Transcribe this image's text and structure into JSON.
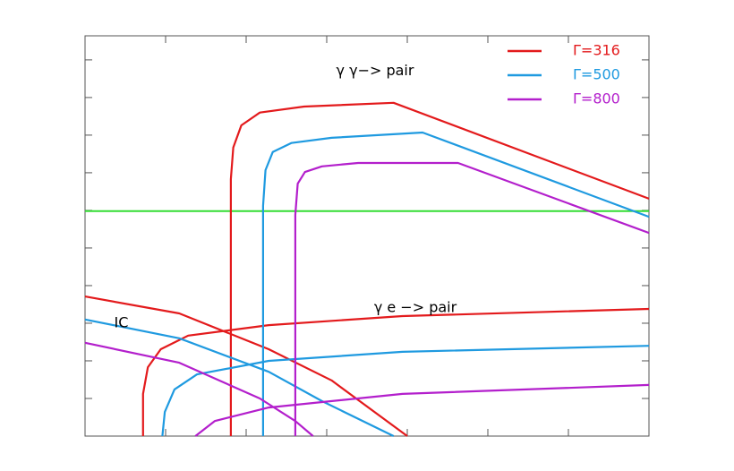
{
  "chart_data": {
    "type": "line",
    "xlim": [
      0,
      7
    ],
    "xticks": [
      1,
      2,
      3,
      4,
      5,
      6
    ],
    "ylim": [
      0,
      10.64
    ],
    "yticks": [
      1,
      2,
      3,
      4,
      5,
      6,
      7,
      8,
      9,
      10
    ],
    "legend": "top-right",
    "annotations": [
      {
        "text": "γ γ−> pair",
        "x": 3.6,
        "y": 9.7
      },
      {
        "text": "γ e −> pair",
        "x": 4.1,
        "y": 3.4
      },
      {
        "text": "IC",
        "x": 0.45,
        "y": 3.0
      }
    ],
    "reference_lines": [
      {
        "y": 5.98,
        "color": "#33dd33"
      }
    ],
    "series": [
      {
        "name": "Γ=316",
        "color": "#e31a1c",
        "curves": [
          {
            "x": [
              1.81,
              1.81,
              1.81,
              1.84,
              1.94,
              2.17,
              2.72,
              3.83,
              7
            ],
            "values": [
              0,
              4.45,
              6.83,
              7.67,
              8.26,
              8.6,
              8.76,
              8.86,
              6.31
            ]
          },
          {
            "x": [
              0.72,
              0.72,
              0.78,
              0.94,
              1.28,
              2.28,
              3.94,
              7
            ],
            "values": [
              0,
              1.12,
              1.83,
              2.31,
              2.67,
              2.95,
              3.19,
              3.38
            ]
          },
          {
            "x": [
              0,
              1.17,
              2.28,
              3.06,
              4.0
            ],
            "values": [
              3.71,
              3.26,
              2.31,
              1.48,
              0
            ]
          }
        ]
      },
      {
        "name": "Γ=500",
        "color": "#1f9ae0",
        "curves": [
          {
            "x": [
              2.21,
              2.21,
              2.21,
              2.24,
              2.33,
              2.56,
              3.06,
              4.19,
              7
            ],
            "values": [
              0,
              4.45,
              6.12,
              7.07,
              7.55,
              7.79,
              7.93,
              8.07,
              5.83
            ]
          },
          {
            "x": [
              0.96,
              0.99,
              1.11,
              1.39,
              2.28,
              3.94,
              7
            ],
            "values": [
              0,
              0.64,
              1.24,
              1.64,
              2.0,
              2.24,
              2.4
            ]
          },
          {
            "x": [
              0,
              1.17,
              2.28,
              2.94,
              3.83
            ],
            "values": [
              3.1,
              2.6,
              1.71,
              0.93,
              0
            ]
          }
        ]
      },
      {
        "name": "Γ=800",
        "color": "#b31fcc",
        "curves": [
          {
            "x": [
              2.61,
              2.61,
              2.61,
              2.64,
              2.73,
              2.94,
              3.39,
              4.63,
              7
            ],
            "values": [
              0,
              4.45,
              5.88,
              6.71,
              7.02,
              7.17,
              7.26,
              7.26,
              5.4
            ]
          },
          {
            "x": [
              1.37,
              1.61,
              2.28,
              3.94,
              7
            ],
            "values": [
              0,
              0.4,
              0.76,
              1.12,
              1.36
            ]
          },
          {
            "x": [
              0,
              1.17,
              2.17,
              2.61,
              2.83
            ],
            "values": [
              2.48,
              1.95,
              1.0,
              0.4,
              0
            ]
          }
        ]
      }
    ]
  }
}
